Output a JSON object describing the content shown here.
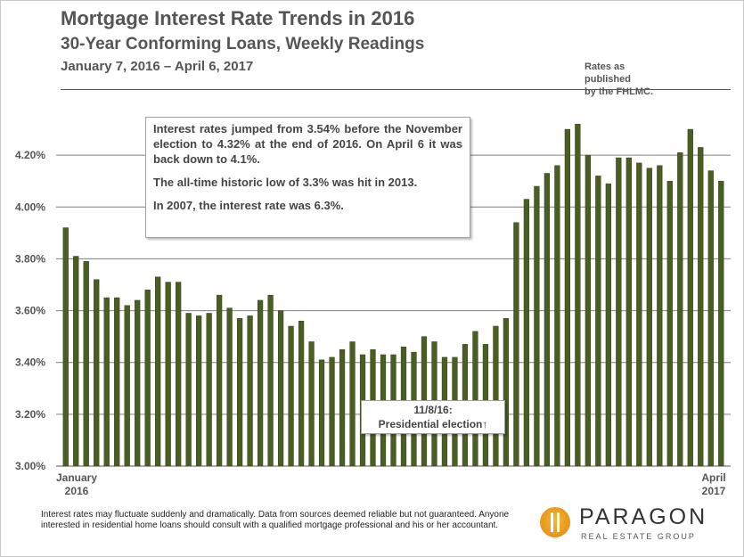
{
  "header": {
    "title": "Mortgage Interest Rate Trends in 2016",
    "subtitle": "30-Year Conforming Loans, Weekly Readings",
    "date_range": "January 7, 2016 – April 6, 2017",
    "source_line1": "Rates as published",
    "source_line2": "by the FHLMC."
  },
  "annotation": {
    "line1": "Interest rates jumped from 3.54% before the November election to 4.32% at the end of 2016. On April 6 it was back down to 4.1%.",
    "line2": "The all-time historic low of 3.3% was hit in 2013.",
    "line3": "In 2007, the interest rate was 6.3%."
  },
  "election_label": {
    "date": "11/8/16:",
    "text": "Presidential election↑"
  },
  "footer": {
    "disclaimer": "Interest rates may fluctuate suddenly and dramatically. Data from sources deemed reliable but not guaranteed. Anyone interested in residential home loans should consult with a qualified mortgage professional and his or her accountant."
  },
  "logo": {
    "name": "PARAGON",
    "tagline": "REAL ESTATE GROUP"
  },
  "colors": {
    "bar": "#4a5e23",
    "bar_edge": "#33421a",
    "grid": "#7f7f7f",
    "text": "#555555",
    "accent": "#e8941a"
  },
  "chart_data": {
    "type": "bar",
    "title": "Mortgage Interest Rate Trends in 2016",
    "ylim": [
      3.0,
      4.4
    ],
    "yticks": [
      "3.00%",
      "3.20%",
      "3.40%",
      "3.60%",
      "3.80%",
      "4.00%",
      "4.20%"
    ],
    "ytick_values": [
      3.0,
      3.2,
      3.4,
      3.6,
      3.8,
      4.0,
      4.2
    ],
    "x_start_label": [
      "January",
      "2016"
    ],
    "x_end_label": [
      "April",
      "2017"
    ],
    "grid": "horizontal",
    "series": [
      {
        "values": [
          3.92,
          3.81,
          3.79,
          3.72,
          3.65,
          3.65,
          3.62,
          3.64,
          3.68,
          3.73,
          3.71,
          3.71,
          3.59,
          3.58,
          3.59,
          3.66,
          3.61,
          3.57,
          3.58,
          3.64,
          3.66,
          3.6,
          3.54,
          3.56,
          3.48,
          3.41,
          3.42,
          3.45,
          3.48,
          3.43,
          3.45,
          3.43,
          3.43,
          3.46,
          3.44,
          3.5,
          3.48,
          3.42,
          3.42,
          3.47,
          3.52,
          3.47,
          3.54,
          3.57,
          3.94,
          4.03,
          4.08,
          4.13,
          4.16,
          4.3,
          4.32,
          4.2,
          4.12,
          4.09,
          4.19,
          4.19,
          4.17,
          4.15,
          4.16,
          4.1,
          4.21,
          4.3,
          4.23,
          4.14,
          4.1
        ]
      }
    ]
  }
}
